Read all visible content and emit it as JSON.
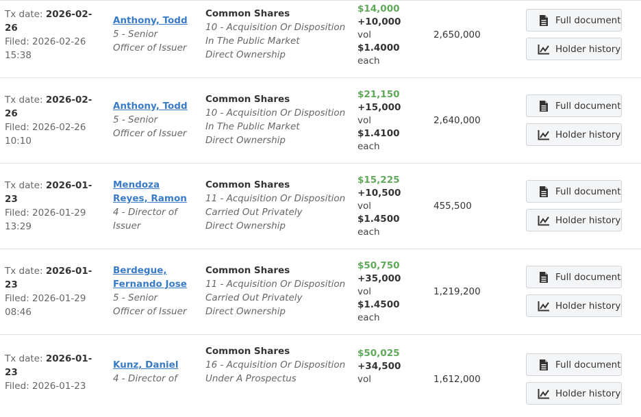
{
  "labels": {
    "tx_date": "Tx date:",
    "filed": "Filed:",
    "vol": "vol",
    "each": "each",
    "full_document": "Full document",
    "holder_history": "Holder history"
  },
  "rows": [
    {
      "tx_date_a": "2026-02-",
      "tx_date_b": "26",
      "filed_date": "2026-02-26",
      "filed_time": "15:38",
      "holder_name_1": "Anthony, Todd",
      "holder_name_2": "",
      "relation_1": "5 - Senior",
      "relation_2": "Officer of Issuer",
      "security": "Common Shares",
      "tx_line_1": "10 - Acquisition Or Disposition",
      "tx_line_2": "In The Public Market",
      "tx_line_3": "Direct Ownership",
      "value": "$14,000",
      "volume": "+10,000",
      "price": "$1.4000",
      "holdings": "2,650,000"
    },
    {
      "tx_date_a": "2026-02-",
      "tx_date_b": "26",
      "filed_date": "2026-02-26",
      "filed_time": "10:10",
      "holder_name_1": "Anthony, Todd",
      "holder_name_2": "",
      "relation_1": "5 - Senior",
      "relation_2": "Officer of Issuer",
      "security": "Common Shares",
      "tx_line_1": "10 - Acquisition Or Disposition",
      "tx_line_2": "In The Public Market",
      "tx_line_3": "Direct Ownership",
      "value": "$21,150",
      "volume": "+15,000",
      "price": "$1.4100",
      "holdings": "2,640,000"
    },
    {
      "tx_date_a": "2026-01-",
      "tx_date_b": "23",
      "filed_date": "2026-01-29",
      "filed_time": "13:29",
      "holder_name_1": "Mendoza",
      "holder_name_2": "Reyes, Ramon",
      "relation_1": "4 - Director of",
      "relation_2": "Issuer",
      "security": "Common Shares",
      "tx_line_1": "11 - Acquisition Or Disposition",
      "tx_line_2": "Carried Out Privately",
      "tx_line_3": "Direct Ownership",
      "value": "$15,225",
      "volume": "+10,500",
      "price": "$1.4500",
      "holdings": "455,500"
    },
    {
      "tx_date_a": "2026-01-",
      "tx_date_b": "23",
      "filed_date": "2026-01-29",
      "filed_time": "08:46",
      "holder_name_1": "Berdegue,",
      "holder_name_2": "Fernando Jose",
      "relation_1": "5 - Senior",
      "relation_2": "Officer of Issuer",
      "security": "Common Shares",
      "tx_line_1": "11 - Acquisition Or Disposition",
      "tx_line_2": "Carried Out Privately",
      "tx_line_3": "Direct Ownership",
      "value": "$50,750",
      "volume": "+35,000",
      "price": "$1.4500",
      "holdings": "1,219,200"
    },
    {
      "tx_date_a": "2026-01-",
      "tx_date_b": "23",
      "filed_date": "2026-01-23",
      "filed_time": "",
      "holder_name_1": "Kunz, Daniel",
      "holder_name_2": "",
      "relation_1": "4 - Director of",
      "relation_2": "",
      "security": "Common Shares",
      "tx_line_1": "16 - Acquisition Or Disposition",
      "tx_line_2": "Under A Prospectus",
      "tx_line_3": "",
      "value": "$50,025",
      "volume": "+34,500",
      "price": "",
      "holdings": "1,612,000"
    }
  ],
  "colors": {
    "link": "#3a7bc8",
    "value_green": "#5fa85a",
    "button_bg": "#f4f5f6",
    "button_border": "#cfd4da"
  },
  "icons": {
    "full_document": "document-icon",
    "holder_history": "line-chart-icon"
  }
}
